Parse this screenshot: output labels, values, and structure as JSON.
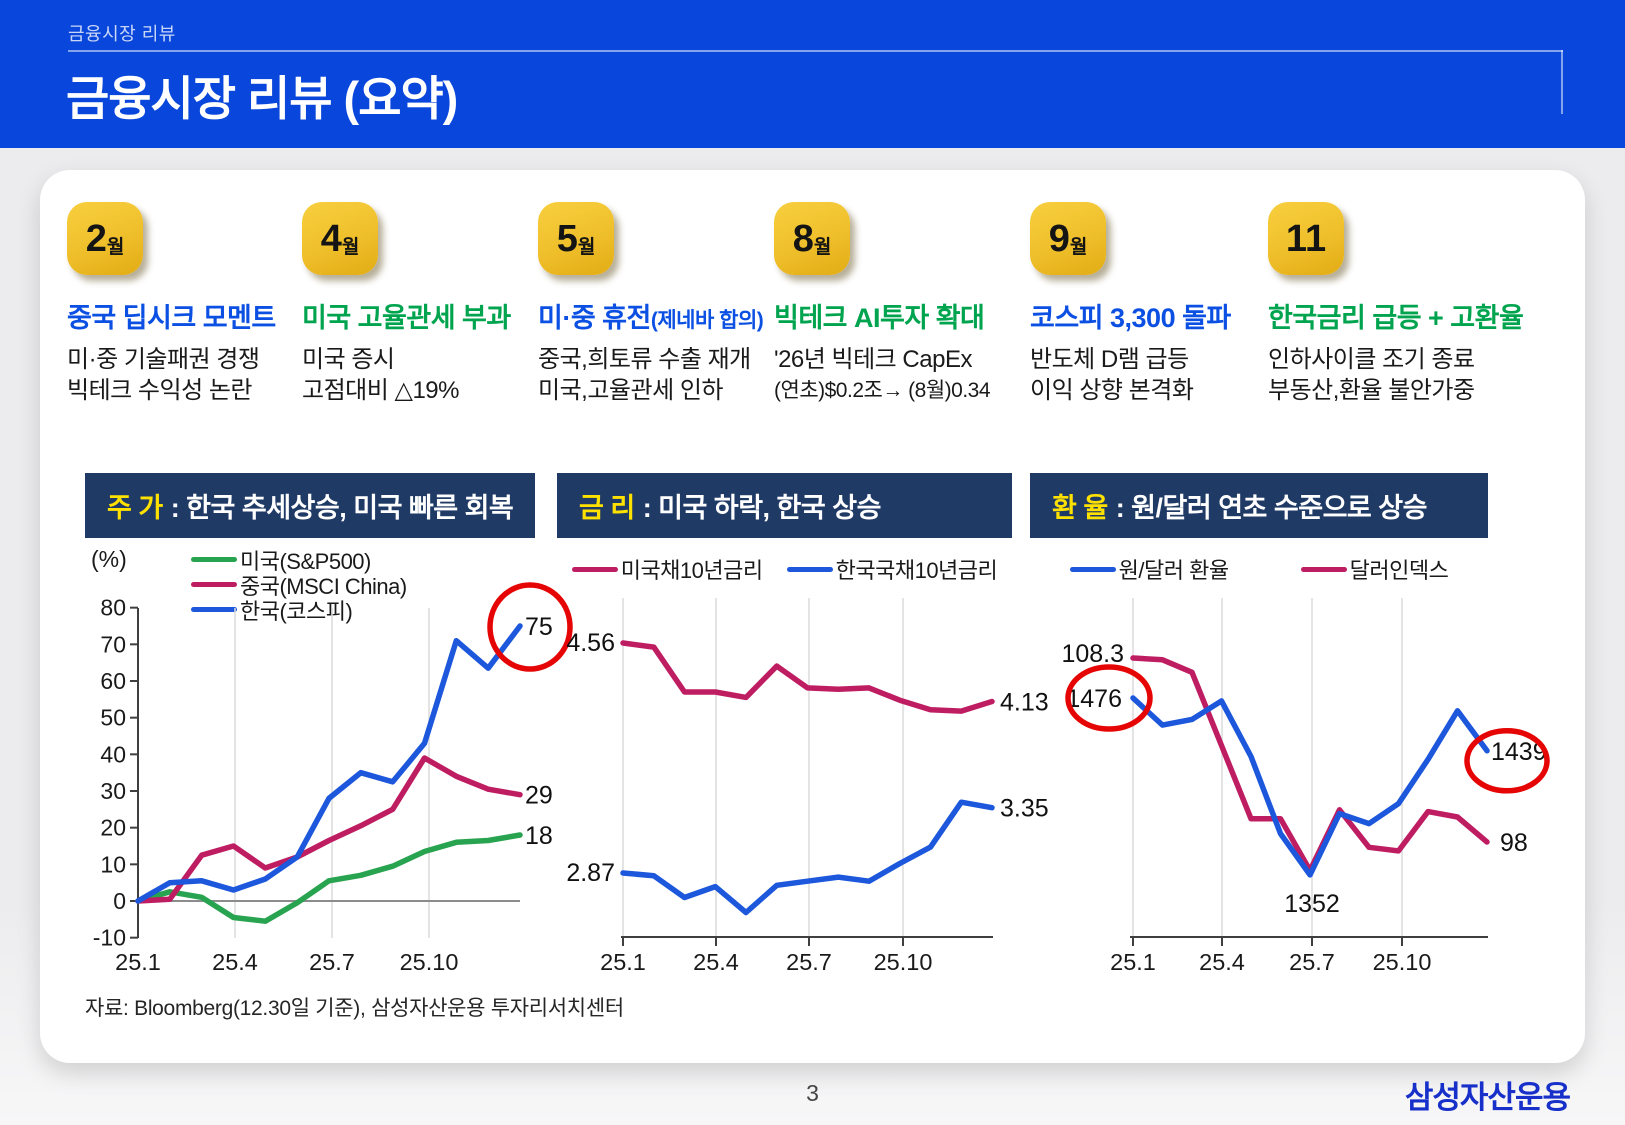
{
  "header": {
    "eyebrow": "금융시장 리뷰",
    "title": "금융시장 리뷰 (요약)",
    "bg_color": "#0946DB"
  },
  "timeline": {
    "items": [
      {
        "badge": "2",
        "badge_suffix": "월",
        "accent": "blue",
        "headline": "중국 딥시크 모멘트",
        "headline_suffix": "",
        "desc_lines": [
          "미·중 기술패권 경쟁",
          "빅테크 수익성 논란"
        ]
      },
      {
        "badge": "4",
        "badge_suffix": "월",
        "accent": "green",
        "headline": "미국 고율관세 부과",
        "headline_suffix": "",
        "desc_lines": [
          "미국 증시",
          "고점대비 △19%"
        ]
      },
      {
        "badge": "5",
        "badge_suffix": "월",
        "accent": "blue",
        "headline": "미·중 휴전",
        "headline_suffix": "(제네바 합의)",
        "desc_lines": [
          "중국,희토류 수출 재개",
          "미국,고율관세 인하"
        ]
      },
      {
        "badge": "8",
        "badge_suffix": "월",
        "accent": "green",
        "headline": "빅테크 AI투자 확대",
        "headline_suffix": "",
        "desc_lines": [
          "'26년 빅테크 CapEx",
          "(연초)$0.2조→ (8월)0.34"
        ]
      },
      {
        "badge": "9",
        "badge_suffix": "월",
        "accent": "blue",
        "headline": "코스피 3,300 돌파",
        "headline_suffix": "",
        "desc_lines": [
          "반도체 D램 급등",
          "이익 상향 본격화"
        ]
      },
      {
        "badge": "11",
        "badge_suffix": "",
        "accent": "green",
        "headline": "한국금리 급등 + 고환율",
        "headline_suffix": "",
        "desc_lines": [
          "인하사이클 조기 종료",
          "부동산,환율 불안가중"
        ]
      }
    ]
  },
  "colors": {
    "accent_blue": "#0B50E2",
    "accent_green": "#00A44E",
    "navy_bar": "#203A66",
    "bar_keyword_yellow": "#FFE100",
    "badge_yellow": "#EFBF2B",
    "circle_red": "#E60505",
    "line_blue": "#1C57DC",
    "line_magenta": "#BF1D62",
    "line_green": "#28A34F"
  },
  "footnote": "자료: Bloomberg(12.30일 기준), 삼성자산운용 투자리서치센터",
  "page_number": "3",
  "logo": "삼성자산운용",
  "chart_data": [
    {
      "type": "line",
      "title_keyword": "주 가",
      "title_rest": ": 한국 추세상승, 미국 빠른 회복",
      "unit_label": "(%)",
      "x_ticks": [
        "25.1",
        "25.4",
        "25.7",
        "25.10"
      ],
      "y_ticks": [
        -10,
        0,
        10,
        20,
        30,
        40,
        50,
        60,
        70,
        80
      ],
      "ylim": [
        -10,
        80
      ],
      "grid": "vertical",
      "legend_position": "top-left-stacked",
      "series": [
        {
          "name": "미국(S&P500)",
          "color": "#28A34F",
          "values": [
            0,
            2.5,
            1,
            -4.5,
            -5.5,
            -0.5,
            5.5,
            7,
            9.5,
            13.5,
            16,
            16.5,
            18
          ],
          "end_label": "18"
        },
        {
          "name": "중국(MSCI China)",
          "color": "#BF1D62",
          "values": [
            0,
            0.5,
            12.5,
            15,
            9,
            12,
            16.5,
            20.5,
            25,
            39,
            34,
            30.5,
            29
          ],
          "end_label": "29"
        },
        {
          "name": "한국(코스피)",
          "color": "#1C57DC",
          "values": [
            0,
            5,
            5.5,
            3,
            6,
            12,
            28,
            35,
            32.5,
            43,
            71,
            63.5,
            75
          ],
          "end_label": "75",
          "end_circled": true
        }
      ]
    },
    {
      "type": "line",
      "title_keyword": "금 리",
      "title_rest": ": 미국 하락, 한국 상승",
      "x_ticks": [
        "25.1",
        "25.4",
        "25.7",
        "25.10"
      ],
      "grid": "vertical",
      "legend_position": "top-center",
      "series": [
        {
          "name": "미국채10년금리",
          "color": "#BF1D62",
          "values": [
            4.56,
            4.53,
            4.2,
            4.2,
            4.16,
            4.39,
            4.23,
            4.22,
            4.23,
            4.14,
            4.07,
            4.06,
            4.13
          ],
          "start_label": "4.56",
          "end_label": "4.13"
        },
        {
          "name": "한국국채10년금리",
          "color": "#1C57DC",
          "values": [
            2.87,
            2.85,
            2.69,
            2.77,
            2.58,
            2.78,
            2.81,
            2.84,
            2.81,
            2.94,
            3.06,
            3.39,
            3.35
          ],
          "start_label": "2.87",
          "end_label": "3.35"
        }
      ]
    },
    {
      "type": "line",
      "title_keyword": "환 율",
      "title_rest": ": 원/달러 연초 수준으로 상승",
      "x_ticks": [
        "25.1",
        "25.4",
        "25.7",
        "25.10"
      ],
      "grid": "vertical",
      "legend_position": "top-center",
      "series": [
        {
          "name": "원/달러 환율",
          "color": "#1C57DC",
          "values": [
            1476,
            1457,
            1461,
            1474,
            1435,
            1381,
            1352,
            1395,
            1388,
            1402,
            1433,
            1467,
            1439
          ],
          "start_label": "1476",
          "start_circled": true,
          "min_label": "1352",
          "end_label": "1439",
          "end_circled": true
        },
        {
          "name": "달러인덱스",
          "color": "#BF1D62",
          "values": [
            108.3,
            108.2,
            107.5,
            103.4,
            99.3,
            99.3,
            96.4,
            99.8,
            97.7,
            97.5,
            99.7,
            99.4,
            98
          ],
          "start_label": "108.3",
          "end_label": "98"
        }
      ]
    }
  ]
}
